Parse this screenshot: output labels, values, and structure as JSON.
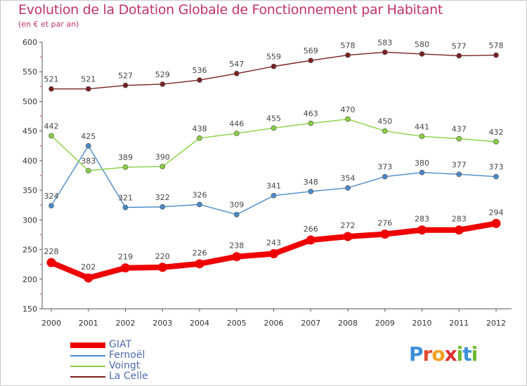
{
  "header": {
    "title": "Evolution de la Dotation Globale de Fonctionnement par Habitant",
    "subtitle": "(en € et par an)"
  },
  "brand": {
    "letters": [
      "P",
      "r",
      "o",
      "x",
      "i",
      "t",
      "i"
    ],
    "colors": [
      "#3a8fd8",
      "#e04a2f",
      "#f0a020",
      "#e03030",
      "#6dba30",
      "#3a8fd8",
      "#6dba30"
    ]
  },
  "chart_data": {
    "type": "line",
    "title": "Evolution de la Dotation Globale de Fonctionnement par Habitant",
    "subtitle": "(en € et par an)",
    "xlabel": "",
    "ylabel": "",
    "categories": [
      "2000",
      "2001",
      "2002",
      "2003",
      "2004",
      "2005",
      "2006",
      "2007",
      "2008",
      "2009",
      "2010",
      "2011",
      "2012"
    ],
    "ylim": [
      150,
      600
    ],
    "yticks": [
      150,
      200,
      250,
      300,
      350,
      400,
      450,
      500,
      550,
      600
    ],
    "grid": false,
    "legend_position": "bottom-left",
    "series": [
      {
        "name": "GIAT",
        "color": "#ee0000",
        "emphasis": true,
        "values": [
          228,
          202,
          219,
          220,
          226,
          238,
          243,
          266,
          272,
          276,
          283,
          283,
          294
        ]
      },
      {
        "name": "Fernoël",
        "color": "#4a8ac8",
        "emphasis": false,
        "values": [
          324,
          425,
          321,
          322,
          326,
          309,
          341,
          348,
          354,
          373,
          380,
          377,
          373
        ]
      },
      {
        "name": "Voingt",
        "color": "#88d040",
        "emphasis": false,
        "values": [
          442,
          383,
          389,
          390,
          438,
          446,
          455,
          463,
          470,
          450,
          441,
          437,
          432
        ]
      },
      {
        "name": "La Celle",
        "color": "#7a2020",
        "emphasis": false,
        "values": [
          521,
          521,
          527,
          529,
          536,
          547,
          559,
          569,
          578,
          583,
          580,
          577,
          578
        ]
      }
    ]
  }
}
